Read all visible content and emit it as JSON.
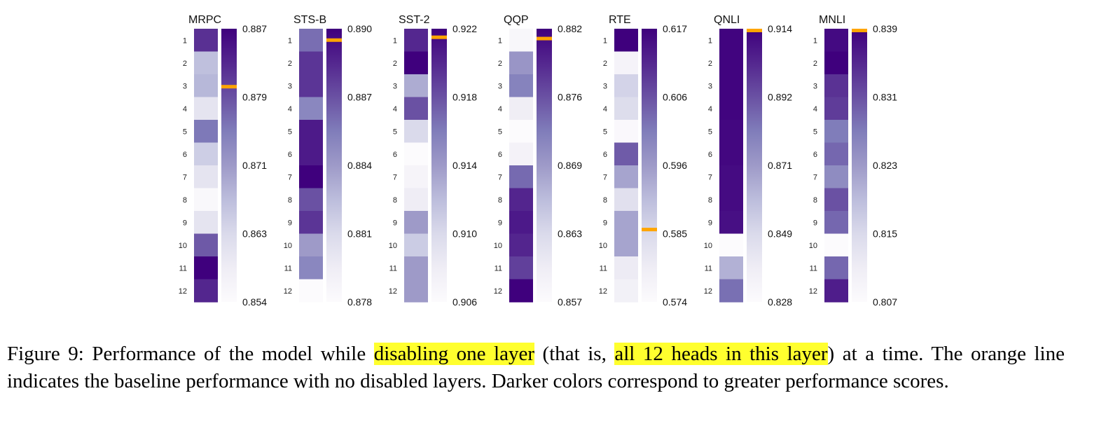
{
  "figure": {
    "caption_label": "Figure 9:",
    "caption_parts": [
      {
        "text": "Performance of the model while ",
        "highlight": false
      },
      {
        "text": "disabling one layer",
        "highlight": true
      },
      {
        "text": " (that is, ",
        "highlight": false
      },
      {
        "text": "all 12 heads in this layer",
        "highlight": true
      },
      {
        "text": ") at a time.  The orange line indicates the baseline performance with no disabled layers.  Darker colors correspond to greater performance scores.",
        "highlight": false
      }
    ]
  },
  "colors": {
    "colormap": "Purples",
    "baseline_marker": "#ffa500",
    "light": "#fcfbfd",
    "dark": "#3f007d"
  },
  "chart_data": [
    {
      "type": "heatmap",
      "title": "MRPC",
      "rows": [
        "1",
        "2",
        "3",
        "4",
        "5",
        "6",
        "7",
        "8",
        "9",
        "10",
        "11",
        "12"
      ],
      "values": [
        0.882,
        0.866,
        0.867,
        0.86,
        0.875,
        0.864,
        0.86,
        0.855,
        0.86,
        0.878,
        0.887,
        0.883
      ],
      "colorbar_ticks": [
        0.887,
        0.879,
        0.871,
        0.863,
        0.854
      ],
      "colorbar_range": [
        0.854,
        0.887
      ],
      "baseline": 0.88
    },
    {
      "type": "heatmap",
      "title": "STS-B",
      "rows": [
        "1",
        "2",
        "3",
        "4",
        "5",
        "6",
        "7",
        "8",
        "9",
        "10",
        "11",
        "12"
      ],
      "values": [
        0.886,
        0.888,
        0.888,
        0.885,
        0.889,
        0.889,
        0.89,
        0.887,
        0.888,
        0.884,
        0.885,
        0.878
      ],
      "colorbar_ticks": [
        0.89,
        0.887,
        0.884,
        0.881,
        0.878
      ],
      "colorbar_range": [
        0.878,
        0.89
      ],
      "baseline": 0.8895
    },
    {
      "type": "heatmap",
      "title": "SST-2",
      "rows": [
        "1",
        "2",
        "3",
        "4",
        "5",
        "6",
        "7",
        "8",
        "9",
        "10",
        "11",
        "12"
      ],
      "values": [
        0.92,
        0.922,
        0.913,
        0.918,
        0.91,
        0.906,
        0.907,
        0.908,
        0.914,
        0.911,
        0.914,
        0.914
      ],
      "colorbar_ticks": [
        0.922,
        0.918,
        0.914,
        0.91,
        0.906
      ],
      "colorbar_range": [
        0.906,
        0.922
      ],
      "baseline": 0.9215
    },
    {
      "type": "heatmap",
      "title": "QQP",
      "rows": [
        "1",
        "2",
        "3",
        "4",
        "5",
        "6",
        "7",
        "8",
        "9",
        "10",
        "11",
        "12"
      ],
      "values": [
        0.858,
        0.87,
        0.872,
        0.86,
        0.857,
        0.859,
        0.874,
        0.879,
        0.88,
        0.879,
        0.877,
        0.882
      ],
      "colorbar_ticks": [
        0.882,
        0.876,
        0.869,
        0.863,
        0.857
      ],
      "colorbar_range": [
        0.857,
        0.882
      ],
      "baseline": 0.8811
    },
    {
      "type": "heatmap",
      "title": "RTE",
      "rows": [
        "1",
        "2",
        "3",
        "4",
        "5",
        "6",
        "7",
        "8",
        "9",
        "10",
        "11",
        "12"
      ],
      "values": [
        0.617,
        0.577,
        0.586,
        0.584,
        0.575,
        0.605,
        0.594,
        0.583,
        0.594,
        0.594,
        0.58,
        0.578
      ],
      "colorbar_ticks": [
        0.617,
        0.606,
        0.596,
        0.585,
        0.574
      ],
      "colorbar_range": [
        0.574,
        0.617
      ],
      "baseline": 0.5854
    },
    {
      "type": "heatmap",
      "title": "QNLI",
      "rows": [
        "1",
        "2",
        "3",
        "4",
        "5",
        "6",
        "7",
        "8",
        "9",
        "10",
        "11",
        "12"
      ],
      "values": [
        0.913,
        0.913,
        0.913,
        0.913,
        0.912,
        0.912,
        0.911,
        0.911,
        0.91,
        0.828,
        0.864,
        0.885
      ],
      "colorbar_ticks": [
        0.914,
        0.892,
        0.871,
        0.849,
        0.828
      ],
      "colorbar_range": [
        0.828,
        0.914
      ],
      "baseline": 0.914
    },
    {
      "type": "heatmap",
      "title": "MNLI",
      "rows": [
        "1",
        "2",
        "3",
        "4",
        "5",
        "6",
        "7",
        "8",
        "9",
        "10",
        "11",
        "12"
      ],
      "values": [
        0.838,
        0.839,
        0.834,
        0.833,
        0.827,
        0.829,
        0.825,
        0.831,
        0.829,
        0.807,
        0.829,
        0.836
      ],
      "colorbar_ticks": [
        0.839,
        0.831,
        0.823,
        0.815,
        0.807
      ],
      "colorbar_range": [
        0.807,
        0.839
      ],
      "baseline": 0.839
    }
  ]
}
